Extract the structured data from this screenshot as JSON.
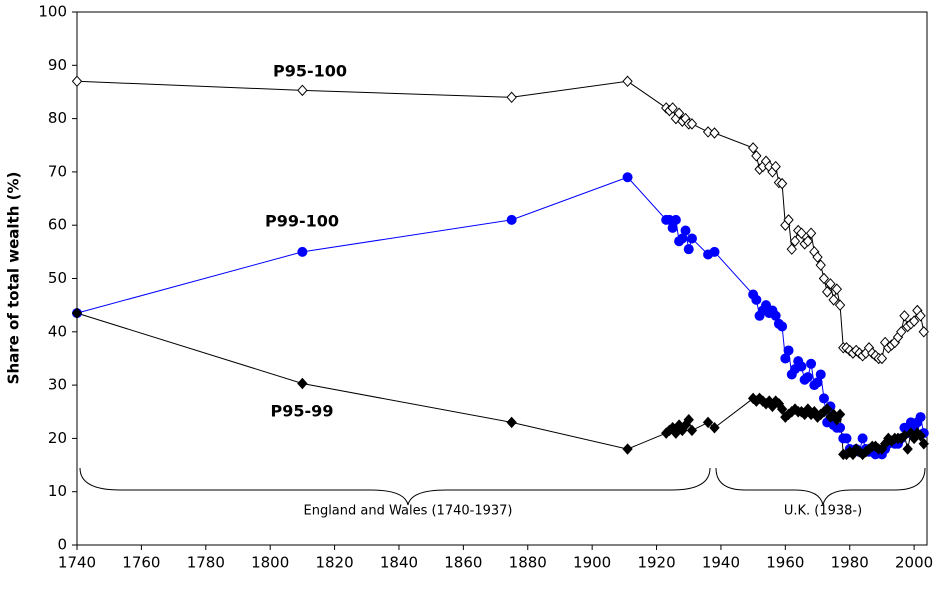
{
  "chart_data": {
    "type": "line",
    "y_label": "Share of total wealth (%)",
    "annotations": [
      "England and Wales (1740-1937)",
      "U.K. (1938-)"
    ],
    "x": [
      1740,
      1810,
      1875,
      1911,
      1923,
      1924,
      1925,
      1926,
      1927,
      1928,
      1929,
      1930,
      1931,
      1936,
      1938,
      1950,
      1951,
      1952,
      1953,
      1954,
      1955,
      1956,
      1957,
      1958,
      1959,
      1960,
      1961,
      1962,
      1963,
      1964,
      1965,
      1966,
      1967,
      1968,
      1969,
      1970,
      1971,
      1972,
      1973,
      1974,
      1975,
      1976,
      1977,
      1978,
      1979,
      1980,
      1981,
      1982,
      1983,
      1984,
      1985,
      1986,
      1987,
      1988,
      1989,
      1990,
      1991,
      1992,
      1993,
      1994,
      1995,
      1996,
      1997,
      1998,
      1999,
      2000,
      2001,
      2002,
      2003
    ],
    "series": [
      {
        "name": "P95-100",
        "color": "#000000",
        "marker": "diamond-open",
        "values": [
          87,
          85.3,
          84,
          87,
          82,
          81.5,
          82,
          80,
          81,
          79.5,
          80,
          79,
          79,
          77.5,
          77.3,
          74.5,
          73,
          70.5,
          71,
          72,
          71,
          70,
          71,
          68,
          67.8,
          60,
          61,
          55.5,
          57,
          59,
          58.5,
          56.5,
          57,
          58.5,
          55,
          54,
          52.5,
          50,
          47.5,
          49,
          46,
          48,
          45,
          37,
          37,
          36.5,
          36,
          36.5,
          36,
          35.5,
          36,
          37,
          36,
          35.5,
          35,
          35,
          38,
          37,
          37.5,
          38,
          39,
          40,
          43,
          41,
          41.5,
          42,
          44,
          43,
          40
        ]
      },
      {
        "name": "P99-100",
        "color": "#0000ff",
        "marker": "circle",
        "values": [
          43.5,
          55,
          61,
          69,
          61,
          61,
          59.5,
          61,
          57,
          57.5,
          59,
          55.5,
          57.5,
          54.5,
          55,
          47,
          46,
          43,
          44,
          45,
          43.5,
          44,
          43,
          41.5,
          41,
          35,
          36.5,
          32,
          33,
          34.5,
          33.5,
          31,
          31.5,
          34,
          30,
          30.5,
          32,
          27.5,
          23,
          26,
          22.5,
          22,
          22,
          20,
          20,
          18,
          17.5,
          18,
          17.5,
          20,
          18,
          17.5,
          18,
          17,
          17.5,
          17,
          18,
          19,
          19.5,
          19,
          19,
          20,
          22,
          21,
          23,
          22,
          23,
          24,
          21
        ]
      },
      {
        "name": "P95-99",
        "color": "#000000",
        "marker": "diamond",
        "values": [
          43.5,
          30.3,
          23,
          18,
          21,
          21.5,
          22,
          21,
          22.5,
          21.5,
          22.5,
          23.5,
          21.5,
          23,
          22,
          27.5,
          27,
          27.5,
          27,
          26.5,
          27,
          26,
          27,
          26.5,
          25.5,
          24,
          24.5,
          25,
          25.5,
          25,
          25,
          24.5,
          25.5,
          24.5,
          25,
          24,
          24.5,
          25,
          25.5,
          24,
          24.5,
          23.5,
          24.5,
          17,
          17,
          17.5,
          17,
          18,
          17.5,
          17,
          17.5,
          18,
          18.5,
          18.5,
          18,
          18,
          19,
          20,
          19.5,
          20,
          20,
          20,
          20.5,
          18,
          21,
          20,
          21,
          20.5,
          19
        ]
      }
    ],
    "xlim": [
      1740,
      2004
    ],
    "xticks": [
      1740,
      1760,
      1780,
      1800,
      1820,
      1840,
      1860,
      1880,
      1900,
      1920,
      1940,
      1960,
      1980,
      2000
    ],
    "ylim": [
      0,
      100
    ],
    "yticks": [
      0,
      10,
      20,
      30,
      40,
      50,
      60,
      70,
      80,
      90,
      100
    ],
    "grid": false
  }
}
